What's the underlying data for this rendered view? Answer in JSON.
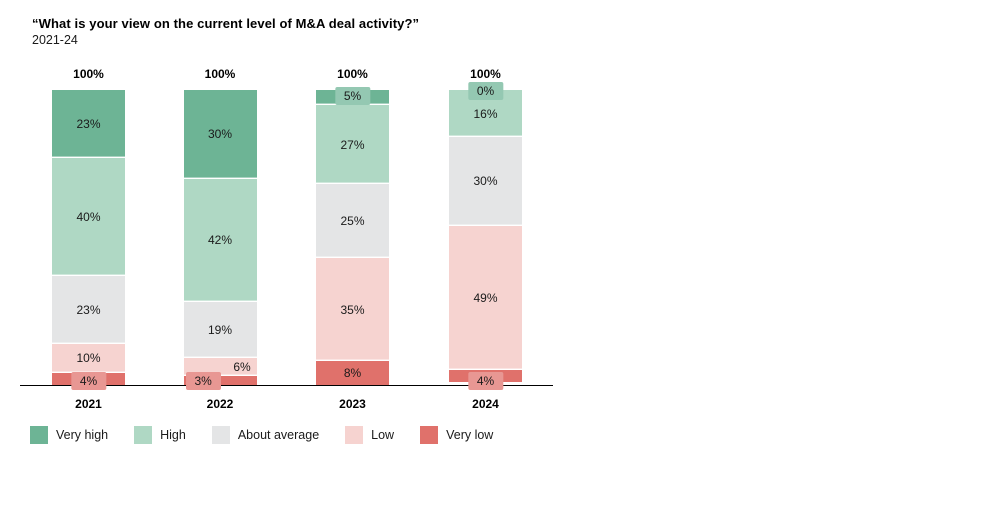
{
  "page": {
    "background": "#ffffff",
    "text_color": "#1a1a1a"
  },
  "header": {
    "title": "“What is your view on the current level of M&A deal activity?”",
    "subtitle": "2021-24"
  },
  "chart_data": {
    "type": "bar",
    "stacked": true,
    "orientation": "vertical",
    "title": "“What is your view on the current level of M&A deal activity?”",
    "subtitle": "2021-24",
    "categories": [
      "2021",
      "2022",
      "2023",
      "2024"
    ],
    "series": [
      {
        "name": "Very high",
        "color": "#6db495",
        "values": [
          23,
          30,
          5,
          0
        ]
      },
      {
        "name": "High",
        "color": "#afd8c4",
        "values": [
          40,
          42,
          27,
          16
        ]
      },
      {
        "name": "About average",
        "color": "#e4e5e6",
        "values": [
          23,
          19,
          25,
          30
        ]
      },
      {
        "name": "Low",
        "color": "#f6d3d0",
        "values": [
          10,
          6,
          35,
          49
        ]
      },
      {
        "name": "Very low",
        "color": "#e0716b",
        "values": [
          4,
          3,
          8,
          4
        ]
      }
    ],
    "total_label": "100%",
    "value_suffix": "%",
    "ylim": [
      0,
      100
    ],
    "grid": false,
    "legend_position": "bottom",
    "axis_color": "#000000"
  }
}
